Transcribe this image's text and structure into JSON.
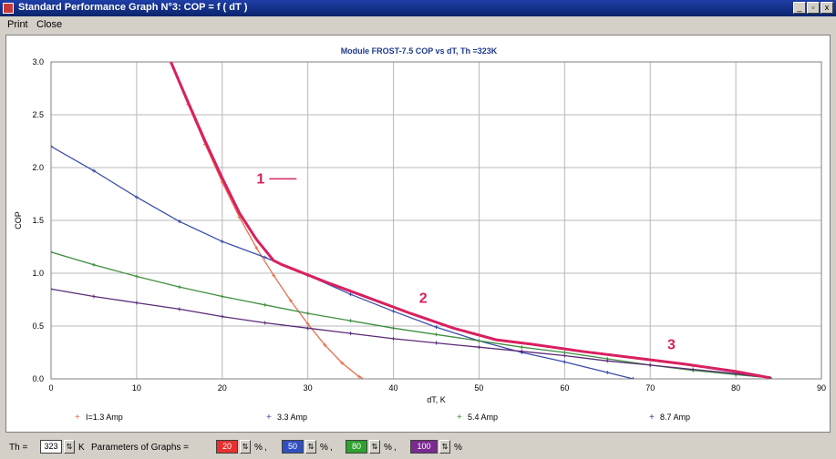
{
  "window": {
    "title": "Standard Performance Graph N°3: COP = f ( dT )",
    "minimize_label": "_",
    "maximize_label": "▫",
    "close_label": "x"
  },
  "menu": {
    "print_label": "Print",
    "close_label": "Close"
  },
  "chart_data": {
    "type": "line",
    "title": "Module FROST-7.5 COP vs dT, Th =323K",
    "xlabel": "dT, K",
    "ylabel": "COP",
    "xlim": [
      0,
      90
    ],
    "ylim": [
      0,
      3.0
    ],
    "x_ticks": [
      0,
      10,
      20,
      30,
      40,
      50,
      60,
      70,
      80,
      90
    ],
    "y_ticks": [
      0.0,
      0.5,
      1.0,
      1.5,
      2.0,
      2.5,
      3.0
    ],
    "grid": true,
    "series": [
      {
        "name": "I=1.3 Amp",
        "color": "#e87050",
        "points": [
          [
            14,
            3.0
          ],
          [
            16,
            2.6
          ],
          [
            18,
            2.22
          ],
          [
            20,
            1.86
          ],
          [
            22,
            1.53
          ],
          [
            24,
            1.24
          ],
          [
            26,
            0.98
          ],
          [
            28,
            0.74
          ],
          [
            30,
            0.52
          ],
          [
            32,
            0.32
          ],
          [
            34,
            0.15
          ],
          [
            36,
            0.02
          ],
          [
            37,
            -0.02
          ]
        ]
      },
      {
        "name": "3.3 Amp",
        "color": "#3c4ea8",
        "points": [
          [
            0,
            2.2
          ],
          [
            5,
            1.97
          ],
          [
            10,
            1.72
          ],
          [
            15,
            1.49
          ],
          [
            20,
            1.3
          ],
          [
            25,
            1.15
          ],
          [
            30,
            0.98
          ],
          [
            35,
            0.8
          ],
          [
            40,
            0.64
          ],
          [
            45,
            0.49
          ],
          [
            50,
            0.36
          ],
          [
            55,
            0.25
          ],
          [
            60,
            0.16
          ],
          [
            65,
            0.06
          ],
          [
            68,
            0.0
          ]
        ]
      },
      {
        "name": "5.4 Amp",
        "color": "#3f8f3f",
        "points": [
          [
            0,
            1.2
          ],
          [
            5,
            1.08
          ],
          [
            10,
            0.97
          ],
          [
            15,
            0.87
          ],
          [
            20,
            0.78
          ],
          [
            25,
            0.7
          ],
          [
            30,
            0.62
          ],
          [
            35,
            0.55
          ],
          [
            40,
            0.48
          ],
          [
            45,
            0.42
          ],
          [
            50,
            0.36
          ],
          [
            55,
            0.3
          ],
          [
            60,
            0.25
          ],
          [
            65,
            0.19
          ],
          [
            70,
            0.13
          ],
          [
            75,
            0.08
          ],
          [
            80,
            0.04
          ],
          [
            84,
            0.01
          ]
        ]
      },
      {
        "name": "8.7 Amp",
        "color": "#5a2a78",
        "points": [
          [
            0,
            0.85
          ],
          [
            5,
            0.78
          ],
          [
            10,
            0.72
          ],
          [
            15,
            0.66
          ],
          [
            20,
            0.59
          ],
          [
            25,
            0.53
          ],
          [
            30,
            0.48
          ],
          [
            35,
            0.43
          ],
          [
            40,
            0.38
          ],
          [
            45,
            0.34
          ],
          [
            50,
            0.3
          ],
          [
            55,
            0.26
          ],
          [
            60,
            0.22
          ],
          [
            65,
            0.17
          ],
          [
            70,
            0.13
          ],
          [
            75,
            0.09
          ],
          [
            80,
            0.05
          ],
          [
            84,
            0.01
          ]
        ]
      }
    ],
    "envelope": {
      "color": "#d82060",
      "points": [
        [
          14,
          3.0
        ],
        [
          16,
          2.62
        ],
        [
          18,
          2.25
        ],
        [
          20,
          1.9
        ],
        [
          22,
          1.57
        ],
        [
          24,
          1.32
        ],
        [
          26,
          1.12
        ],
        [
          27,
          1.08
        ],
        [
          32,
          0.92
        ],
        [
          37,
          0.77
        ],
        [
          42,
          0.62
        ],
        [
          47,
          0.48
        ],
        [
          52,
          0.37
        ],
        [
          56,
          0.33
        ],
        [
          62,
          0.26
        ],
        [
          68,
          0.2
        ],
        [
          74,
          0.14
        ],
        [
          80,
          0.07
        ],
        [
          84,
          0.01
        ]
      ]
    },
    "annotations": [
      {
        "label": "1",
        "x": 24,
        "y": 1.85
      },
      {
        "label": "2",
        "x": 43,
        "y": 0.72
      },
      {
        "label": "3",
        "x": 72,
        "y": 0.28
      }
    ]
  },
  "legend": [
    {
      "marker": "+",
      "label": "I=1.3 Amp",
      "color": "#e87050"
    },
    {
      "marker": "+",
      "label": "3.3 Amp",
      "color": "#3c4ea8"
    },
    {
      "marker": "+",
      "label": "5.4 Amp",
      "color": "#3f8f3f"
    },
    {
      "marker": "+",
      "label": "8.7 Amp",
      "color": "#5a2a78"
    }
  ],
  "bottom": {
    "th_label": "Th =",
    "th_value": "323",
    "th_unit": "K",
    "params_label": "Parameters of Graphs =",
    "percent": "%",
    "comma": ",",
    "params": [
      {
        "value": "20",
        "color": "#e83030"
      },
      {
        "value": "50",
        "color": "#3050c0"
      },
      {
        "value": "80",
        "color": "#30a030"
      },
      {
        "value": "100",
        "color": "#7a2a90"
      }
    ],
    "spin_icon": "⇅"
  }
}
